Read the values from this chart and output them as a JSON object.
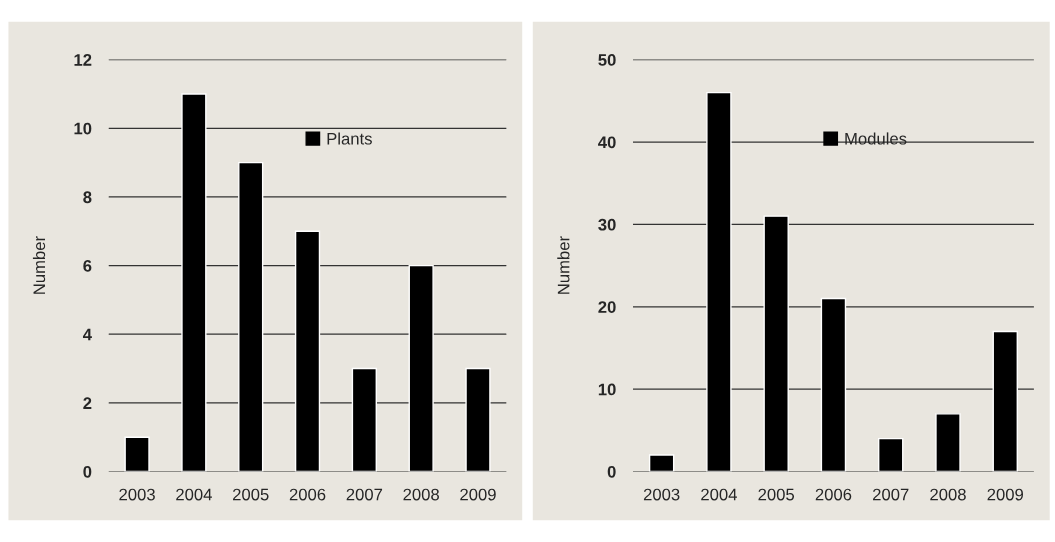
{
  "chart_data": [
    {
      "type": "bar",
      "ylabel": "Number",
      "categories": [
        "2003",
        "2004",
        "2005",
        "2006",
        "2007",
        "2008",
        "2009"
      ],
      "ylim": [
        0,
        12
      ],
      "yticks": [
        0,
        2,
        4,
        6,
        8,
        10,
        12
      ],
      "grid": "y",
      "legend": "top",
      "series": [
        {
          "name": "Plants",
          "color": "#000000",
          "values": [
            1,
            11,
            9,
            7,
            3,
            6,
            3
          ]
        }
      ]
    },
    {
      "type": "bar",
      "ylabel": "Number",
      "categories": [
        "2003",
        "2004",
        "2005",
        "2006",
        "2007",
        "2008",
        "2009"
      ],
      "ylim": [
        0,
        50
      ],
      "yticks": [
        0,
        10,
        20,
        30,
        40,
        50
      ],
      "grid": "y",
      "legend": "top",
      "series": [
        {
          "name": "Modules",
          "color": "#000000",
          "values": [
            2,
            46,
            31,
            21,
            4,
            7,
            17
          ]
        }
      ]
    }
  ]
}
